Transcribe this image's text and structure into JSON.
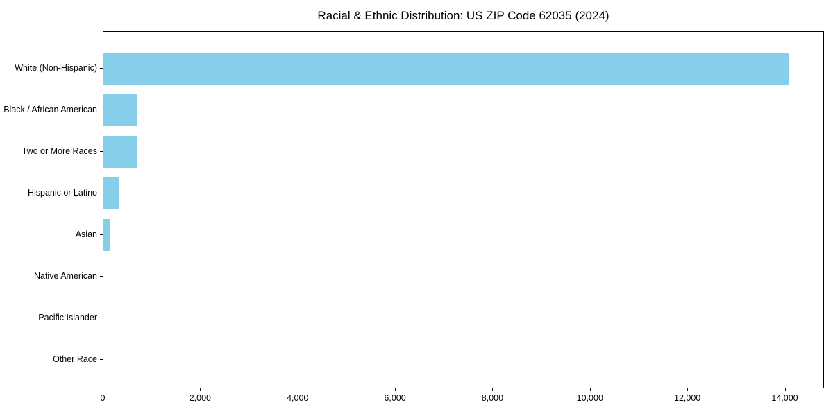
{
  "chart_data": {
    "type": "bar",
    "orientation": "horizontal",
    "title": "Racial & Ethnic Distribution: US ZIP Code 62035 (2024)",
    "categories": [
      "White (Non-Hispanic)",
      "Black / African American",
      "Two or More Races",
      "Hispanic or Latino",
      "Asian",
      "Native American",
      "Pacific Islander",
      "Other Race"
    ],
    "values": [
      14100,
      680,
      700,
      330,
      130,
      0,
      0,
      0
    ],
    "xlabel": "",
    "ylabel": "",
    "xlim": [
      0,
      14805
    ],
    "x_ticks": [
      0,
      2000,
      4000,
      6000,
      8000,
      10000,
      12000,
      14000
    ],
    "x_tick_labels": [
      "0",
      "2,000",
      "4,000",
      "6,000",
      "8,000",
      "10,000",
      "12,000",
      "14,000"
    ],
    "bar_color": "#87ceeb",
    "text_color": "#000000",
    "spine_color": "#000000",
    "grid": false,
    "legend": null
  }
}
